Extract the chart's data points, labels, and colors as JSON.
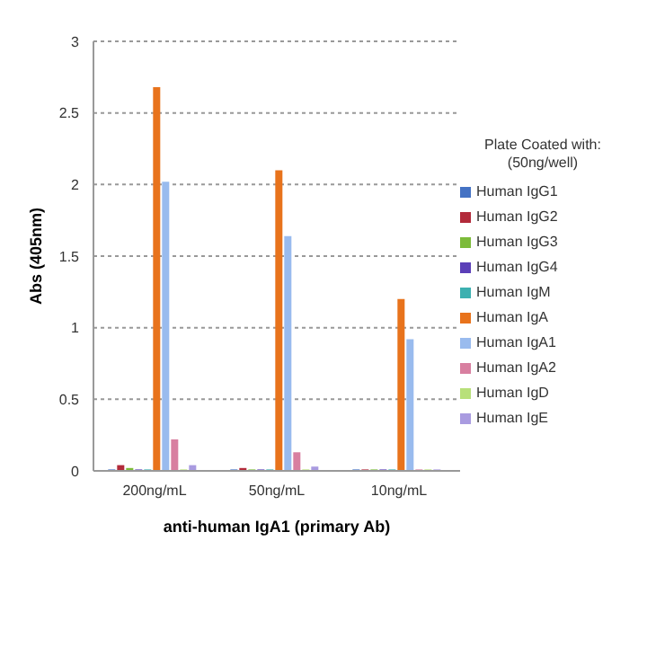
{
  "chart_data": {
    "type": "bar",
    "xlabel": "anti-human IgA1 (primary Ab)",
    "ylabel": "Abs (405nm)",
    "legend_title": "Plate Coated with: (50ng/well)",
    "categories": [
      "200ng/mL",
      "50ng/mL",
      "10ng/mL"
    ],
    "series": [
      {
        "name": "Human IgG1",
        "color": "#4472c4",
        "values": [
          0.01,
          0.01,
          0.01
        ]
      },
      {
        "name": "Human IgG2",
        "color": "#b22a3a",
        "values": [
          0.04,
          0.02,
          0.01
        ]
      },
      {
        "name": "Human IgG3",
        "color": "#7cbb3a",
        "values": [
          0.02,
          0.01,
          0.01
        ]
      },
      {
        "name": "Human IgG4",
        "color": "#5b3fb8",
        "values": [
          0.01,
          0.01,
          0.01
        ]
      },
      {
        "name": "Human IgM",
        "color": "#3cb0b0",
        "values": [
          0.01,
          0.01,
          0.01
        ]
      },
      {
        "name": "Human IgA",
        "color": "#e8731c",
        "values": [
          2.68,
          2.1,
          1.2
        ]
      },
      {
        "name": "Human IgA1",
        "color": "#99bbee",
        "values": [
          2.02,
          1.64,
          0.92
        ]
      },
      {
        "name": "Human IgA2",
        "color": "#d87fa0",
        "values": [
          0.22,
          0.13,
          0.01
        ]
      },
      {
        "name": "Human IgD",
        "color": "#b8e07a",
        "values": [
          0.01,
          0.01,
          0.01
        ]
      },
      {
        "name": "Human IgE",
        "color": "#a99be0",
        "values": [
          0.04,
          0.03,
          0.01
        ]
      }
    ],
    "ylim": [
      0,
      3
    ],
    "yticks": [
      0,
      0.5,
      1,
      1.5,
      2,
      2.5,
      3
    ],
    "grid": "y",
    "legend": "right"
  }
}
